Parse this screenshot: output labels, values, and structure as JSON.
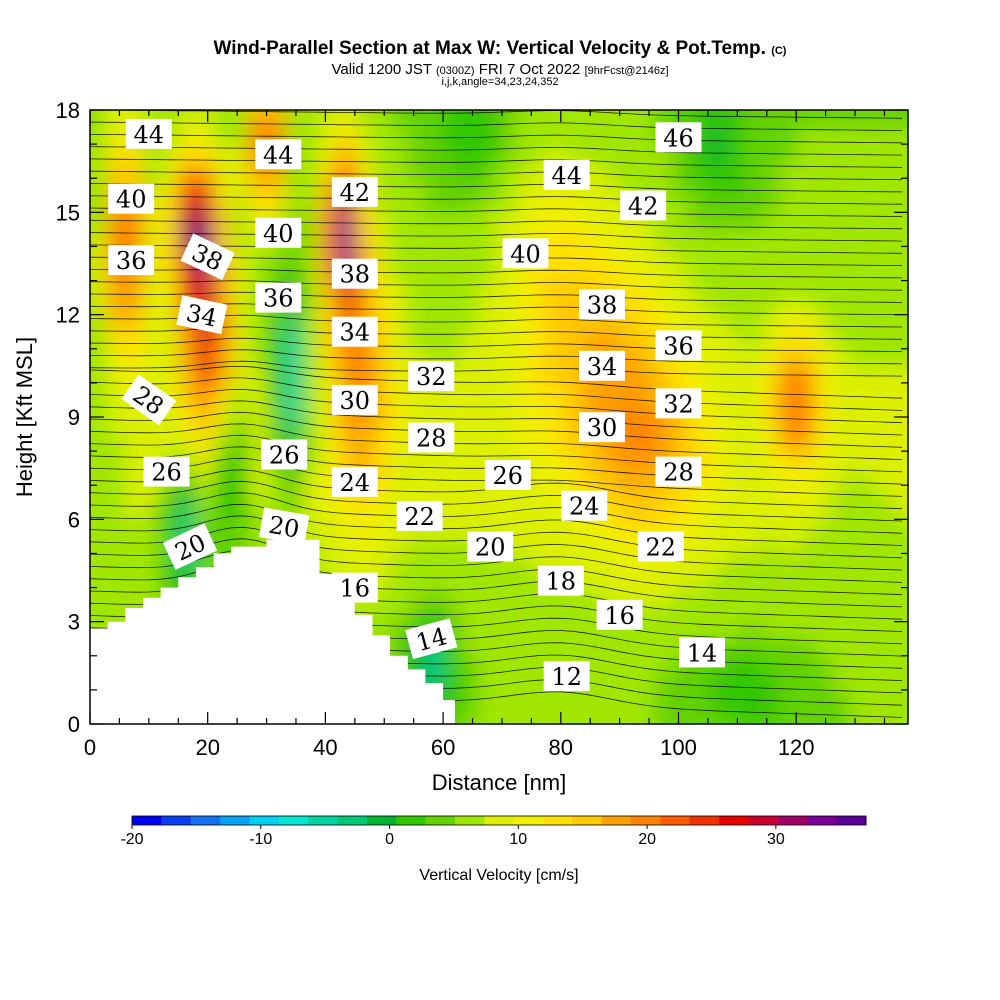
{
  "title": {
    "main": "Wind-Parallel Section at Max W: Vertical Velocity & Pot.Temp.",
    "corner": "(C)",
    "valid_prefix": "Valid 1200 JST",
    "valid_small": "(0300Z)",
    "valid_date": "FRI 7 Oct 2022",
    "valid_fcst": "[9hrFcst@2146z]",
    "params": "i,j,k,angle=34,23,24,352"
  },
  "chart_data": {
    "type": "heatmap",
    "xlabel": "Distance [nm]",
    "ylabel": "Height [Kft MSL]",
    "xlim": [
      0,
      139
    ],
    "ylim": [
      0,
      18
    ],
    "x_ticks": [
      "0",
      "20",
      "40",
      "60",
      "80",
      "100",
      "120"
    ],
    "y_ticks": [
      "0",
      "3",
      "6",
      "9",
      "12",
      "15",
      "18"
    ],
    "colorbar": {
      "label": "Vertical Velocity [cm/s]",
      "range": [
        -20,
        37
      ],
      "ticks": [
        "-20",
        "-10",
        "0",
        "10",
        "20",
        "30"
      ],
      "colors": [
        "#0000f0",
        "#0a3ef0",
        "#1470f0",
        "#0aa0f0",
        "#00d0f0",
        "#00e6d0",
        "#00d2a0",
        "#00c873",
        "#00b432",
        "#32c800",
        "#64d200",
        "#a0e600",
        "#dcf000",
        "#f0f000",
        "#ffe000",
        "#ffc800",
        "#ffa000",
        "#ff8200",
        "#ff5a00",
        "#f03200",
        "#e60000",
        "#c80032",
        "#a00064",
        "#780096",
        "#5a0096"
      ]
    },
    "terrain_profile": [
      [
        0,
        2.8
      ],
      [
        3,
        2.8
      ],
      [
        3,
        3.0
      ],
      [
        6,
        3.0
      ],
      [
        6,
        3.4
      ],
      [
        9,
        3.4
      ],
      [
        9,
        3.7
      ],
      [
        12,
        3.7
      ],
      [
        12,
        4.0
      ],
      [
        15,
        4.0
      ],
      [
        15,
        4.3
      ],
      [
        18,
        4.3
      ],
      [
        18,
        4.6
      ],
      [
        21,
        4.6
      ],
      [
        21,
        5.0
      ],
      [
        24,
        5.0
      ],
      [
        24,
        5.2
      ],
      [
        30,
        5.2
      ],
      [
        30,
        5.4
      ],
      [
        39,
        5.4
      ],
      [
        39,
        4.4
      ],
      [
        42,
        4.4
      ],
      [
        42,
        3.8
      ],
      [
        45,
        3.8
      ],
      [
        45,
        3.2
      ],
      [
        48,
        3.2
      ],
      [
        48,
        2.6
      ],
      [
        51,
        2.6
      ],
      [
        51,
        2.0
      ],
      [
        54,
        2.0
      ],
      [
        54,
        1.6
      ],
      [
        57,
        1.6
      ],
      [
        57,
        1.2
      ],
      [
        60,
        1.2
      ],
      [
        60,
        0.7
      ],
      [
        62,
        0.7
      ],
      [
        62,
        0.3
      ],
      [
        139,
        0.3
      ]
    ],
    "theta_contour_labels": [
      {
        "text": "44",
        "x": 10,
        "y": 17.3,
        "rot": 0
      },
      {
        "text": "44",
        "x": 32,
        "y": 16.7,
        "rot": 0
      },
      {
        "text": "46",
        "x": 100,
        "y": 17.2,
        "rot": 0
      },
      {
        "text": "44",
        "x": 81,
        "y": 16.1,
        "rot": 0
      },
      {
        "text": "40",
        "x": 7,
        "y": 15.4,
        "rot": 0
      },
      {
        "text": "42",
        "x": 45,
        "y": 15.6,
        "rot": 0
      },
      {
        "text": "42",
        "x": 94,
        "y": 15.2,
        "rot": 0
      },
      {
        "text": "40",
        "x": 32,
        "y": 14.4,
        "rot": 0
      },
      {
        "text": "36",
        "x": 7,
        "y": 13.6,
        "rot": 0
      },
      {
        "text": "38",
        "x": 20,
        "y": 13.7,
        "rot": 25
      },
      {
        "text": "40",
        "x": 74,
        "y": 13.8,
        "rot": 0
      },
      {
        "text": "38",
        "x": 45,
        "y": 13.2,
        "rot": 0
      },
      {
        "text": "36",
        "x": 32,
        "y": 12.5,
        "rot": 0
      },
      {
        "text": "38",
        "x": 87,
        "y": 12.3,
        "rot": 0
      },
      {
        "text": "34",
        "x": 19,
        "y": 12.0,
        "rot": 12
      },
      {
        "text": "34",
        "x": 45,
        "y": 11.5,
        "rot": 0
      },
      {
        "text": "36",
        "x": 100,
        "y": 11.1,
        "rot": 0
      },
      {
        "text": "34",
        "x": 87,
        "y": 10.5,
        "rot": 0
      },
      {
        "text": "32",
        "x": 58,
        "y": 10.2,
        "rot": 0
      },
      {
        "text": "28",
        "x": 10,
        "y": 9.5,
        "rot": 35
      },
      {
        "text": "30",
        "x": 45,
        "y": 9.5,
        "rot": 0
      },
      {
        "text": "32",
        "x": 100,
        "y": 9.4,
        "rot": 0
      },
      {
        "text": "30",
        "x": 87,
        "y": 8.7,
        "rot": 0
      },
      {
        "text": "28",
        "x": 58,
        "y": 8.4,
        "rot": 0
      },
      {
        "text": "26",
        "x": 33,
        "y": 7.9,
        "rot": 0
      },
      {
        "text": "26",
        "x": 13,
        "y": 7.4,
        "rot": 0
      },
      {
        "text": "26",
        "x": 71,
        "y": 7.3,
        "rot": 0
      },
      {
        "text": "28",
        "x": 100,
        "y": 7.4,
        "rot": 0
      },
      {
        "text": "24",
        "x": 45,
        "y": 7.1,
        "rot": 0
      },
      {
        "text": "24",
        "x": 84,
        "y": 6.4,
        "rot": 0
      },
      {
        "text": "22",
        "x": 56,
        "y": 6.1,
        "rot": 0
      },
      {
        "text": "20",
        "x": 33,
        "y": 5.8,
        "rot": 10
      },
      {
        "text": "20",
        "x": 17,
        "y": 5.2,
        "rot": -25
      },
      {
        "text": "20",
        "x": 68,
        "y": 5.2,
        "rot": 0
      },
      {
        "text": "22",
        "x": 97,
        "y": 5.2,
        "rot": 0
      },
      {
        "text": "18",
        "x": 80,
        "y": 4.2,
        "rot": 0
      },
      {
        "text": "16",
        "x": 45,
        "y": 4.0,
        "rot": 0
      },
      {
        "text": "16",
        "x": 90,
        "y": 3.2,
        "rot": 0
      },
      {
        "text": "14",
        "x": 58,
        "y": 2.5,
        "rot": -15
      },
      {
        "text": "14",
        "x": 104,
        "y": 2.1,
        "rot": 0
      },
      {
        "text": "12",
        "x": 81,
        "y": 1.4,
        "rot": 0
      }
    ]
  }
}
